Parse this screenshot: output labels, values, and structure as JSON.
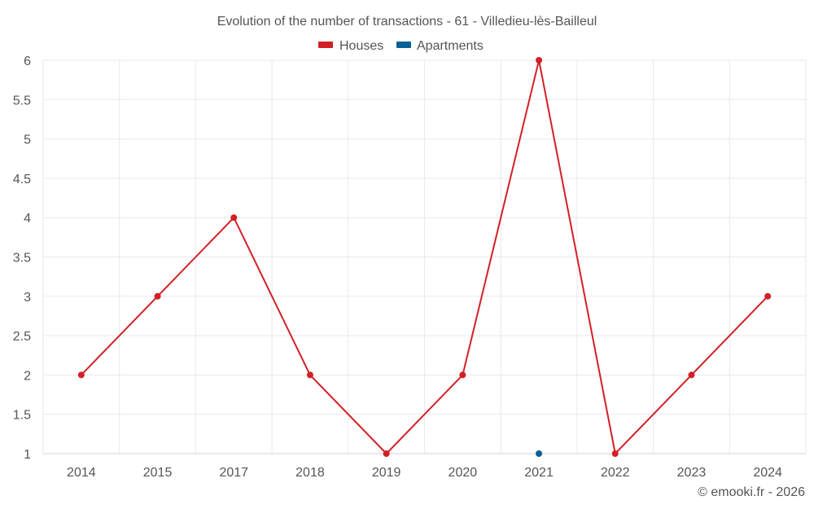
{
  "chart_data": {
    "type": "line",
    "title": "Evolution of the number of transactions - 61 - Villedieu-lès-Bailleul",
    "categories": [
      "2014",
      "2015",
      "2017",
      "2018",
      "2019",
      "2020",
      "2021",
      "2022",
      "2023",
      "2024"
    ],
    "y_ticks": [
      "1",
      "1.5",
      "2",
      "2.5",
      "3",
      "3.5",
      "4",
      "4.5",
      "5",
      "5.5",
      "6"
    ],
    "ylim": [
      1,
      6
    ],
    "grid": true,
    "legend_position": "top-center",
    "series": [
      {
        "name": "Houses",
        "color": "#d32027",
        "values": [
          2,
          3,
          4,
          2,
          1,
          2,
          6,
          1,
          2,
          3
        ]
      },
      {
        "name": "Apartments",
        "color": "#0a6196",
        "values": [
          null,
          null,
          null,
          null,
          null,
          null,
          1,
          null,
          null,
          null
        ]
      }
    ]
  },
  "credit": "© emooki.fr - 2026"
}
